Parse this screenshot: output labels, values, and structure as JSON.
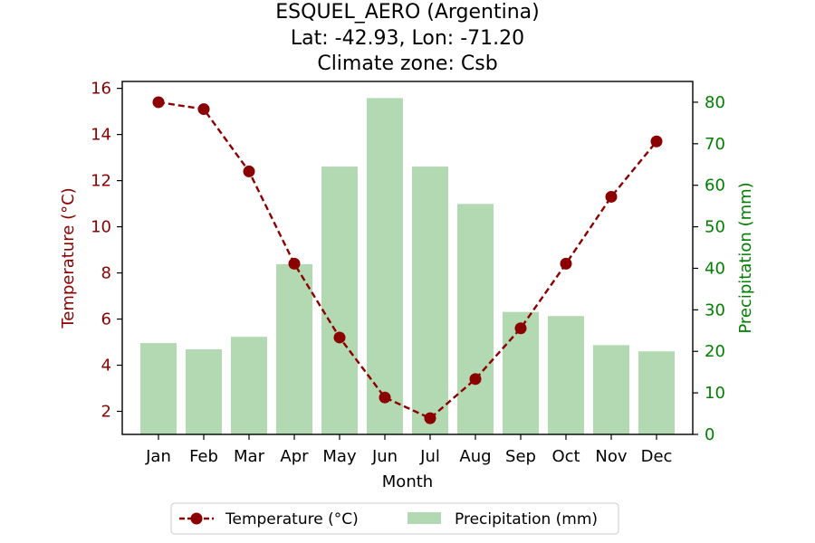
{
  "chart_data": {
    "type": "bar+line",
    "title_lines": [
      "ESQUEL_AERO (Argentina)",
      "Lat: -42.93, Lon: -71.20",
      "Climate zone: Csb"
    ],
    "xlabel": "Month",
    "categories": [
      "Jan",
      "Feb",
      "Mar",
      "Apr",
      "May",
      "Jun",
      "Jul",
      "Aug",
      "Sep",
      "Oct",
      "Nov",
      "Dec"
    ],
    "temperature": {
      "name": "Temperature (°C)",
      "axis_label": "Temperature (°C)",
      "values": [
        15.4,
        15.1,
        12.4,
        8.4,
        5.2,
        2.6,
        1.7,
        3.4,
        5.6,
        8.4,
        11.3,
        13.7
      ],
      "ylim": [
        1.0,
        16.3
      ],
      "ticks": [
        2,
        4,
        6,
        8,
        10,
        12,
        14,
        16
      ],
      "color": "#8b0000"
    },
    "precipitation": {
      "name": "Precipitation (mm)",
      "axis_label": "Precipitation (mm)",
      "values": [
        22,
        20.5,
        23.5,
        41,
        64.5,
        81,
        64.5,
        55.5,
        29.5,
        28.5,
        21.5,
        20
      ],
      "ylim": [
        0,
        85
      ],
      "ticks": [
        0,
        10,
        20,
        30,
        40,
        50,
        60,
        70,
        80
      ],
      "color": "#b2d9b2",
      "axis_color": "#008000"
    },
    "legend_position": "bottom-center"
  }
}
